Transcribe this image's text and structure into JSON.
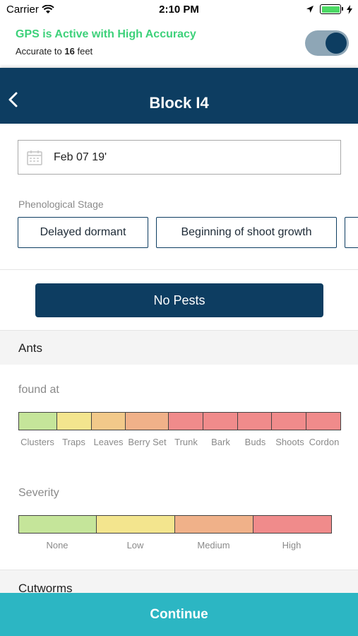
{
  "status_bar": {
    "carrier": "Carrier",
    "time": "2:10 PM"
  },
  "gps": {
    "title": "GPS is Active with High Accuracy",
    "sub_prefix": "Accurate to",
    "accuracy_value": "16",
    "accuracy_unit": "feet",
    "toggle_on": true
  },
  "header": {
    "title": "Block I4"
  },
  "date": {
    "value": "Feb 07 19'"
  },
  "phenological": {
    "label": "Phenological Stage",
    "stages": [
      "Delayed dormant",
      "Beginning of shoot growth"
    ]
  },
  "no_pests_label": "No Pests",
  "pests": [
    {
      "name": "Ants",
      "found_at_label": "found at",
      "locations": [
        "Clusters",
        "Traps",
        "Leaves",
        "Berry Set",
        "Trunk",
        "Bark",
        "Buds",
        "Shoots",
        "Cordon"
      ],
      "location_colors": [
        "#c5e59a",
        "#f3e58e",
        "#f2c98a",
        "#f0b189",
        "#f08b8b",
        "#f08b8b",
        "#f08b8b",
        "#f08b8b",
        "#f08b8b"
      ],
      "severity_label": "Severity",
      "severity_levels": [
        "None",
        "Low",
        "Medium",
        "High"
      ],
      "severity_colors": [
        "#c5e59a",
        "#f3e58e",
        "#f0b189",
        "#f08b8b"
      ]
    },
    {
      "name": "Cutworms"
    }
  ],
  "continue_label": "Continue",
  "colors": {
    "navy": "#0d3d61",
    "gps_green": "#3dd17a",
    "continue_teal": "#2cb6c3"
  }
}
